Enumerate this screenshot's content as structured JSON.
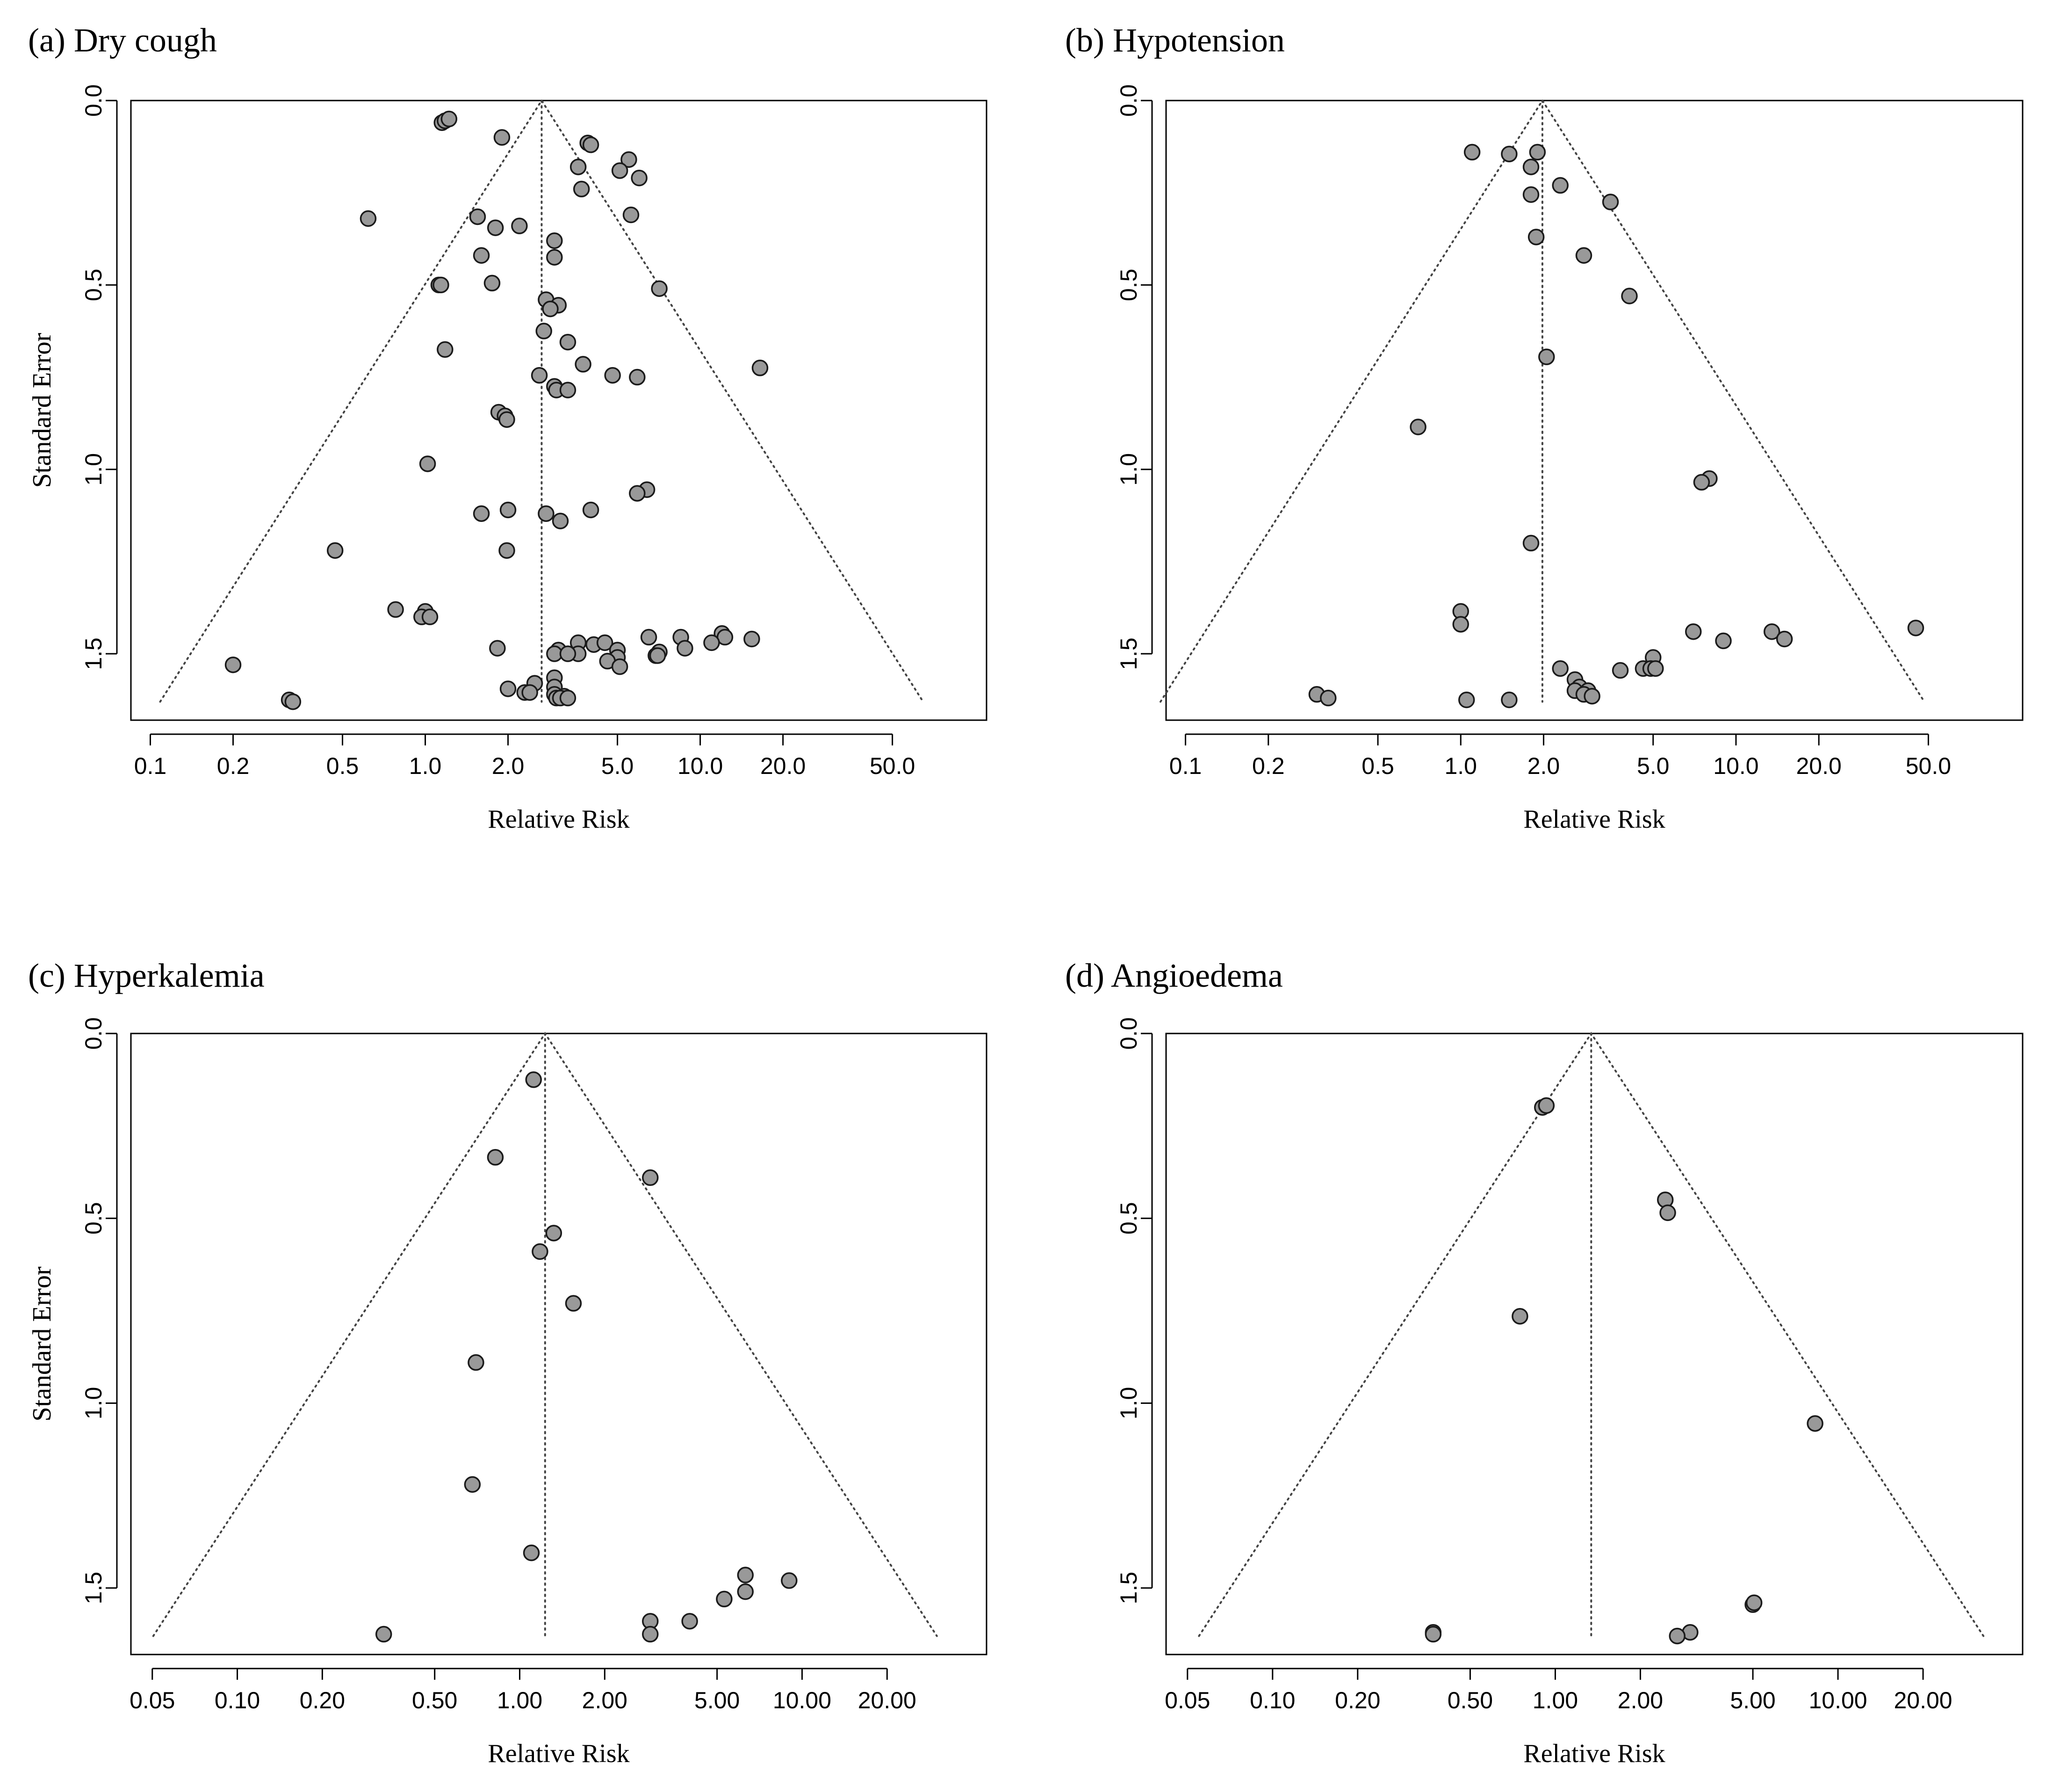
{
  "chart_data": [
    {
      "type": "scatter",
      "title": "(a) Dry cough",
      "xlabel": "Relative Risk",
      "ylabel": "Standard Error",
      "x_scale": "log",
      "xlim": [
        0.085,
        110
      ],
      "ylim": [
        0,
        1.68
      ],
      "x_ticks": [
        0.1,
        0.2,
        0.5,
        1.0,
        2.0,
        5.0,
        10.0,
        20.0,
        50.0
      ],
      "x_tick_labels": [
        "0.1",
        "0.2",
        "0.5",
        "1.0",
        "2.0",
        "5.0",
        "10.0",
        "20.0",
        "50.0"
      ],
      "y_ticks": [
        0.0,
        0.5,
        1.0,
        1.5
      ],
      "y_tick_labels": [
        "0.0",
        "0.5",
        "1.0",
        "1.5"
      ],
      "pooled_estimate": 2.65,
      "funnel_se_max": 1.63,
      "points": [
        {
          "rr": 1.15,
          "se": 0.06
        },
        {
          "rr": 1.18,
          "se": 0.055
        },
        {
          "rr": 1.22,
          "se": 0.05
        },
        {
          "rr": 1.9,
          "se": 0.1
        },
        {
          "rr": 3.9,
          "se": 0.115
        },
        {
          "rr": 4.0,
          "se": 0.12
        },
        {
          "rr": 5.5,
          "se": 0.16
        },
        {
          "rr": 3.6,
          "se": 0.18
        },
        {
          "rr": 5.1,
          "se": 0.19
        },
        {
          "rr": 6.0,
          "se": 0.21
        },
        {
          "rr": 3.7,
          "se": 0.24
        },
        {
          "rr": 0.62,
          "se": 0.32
        },
        {
          "rr": 1.55,
          "se": 0.315
        },
        {
          "rr": 5.6,
          "se": 0.31
        },
        {
          "rr": 1.8,
          "se": 0.345
        },
        {
          "rr": 2.2,
          "se": 0.34
        },
        {
          "rr": 2.95,
          "se": 0.38
        },
        {
          "rr": 1.6,
          "se": 0.42
        },
        {
          "rr": 2.95,
          "se": 0.425
        },
        {
          "rr": 1.75,
          "se": 0.495
        },
        {
          "rr": 1.12,
          "se": 0.5
        },
        {
          "rr": 1.14,
          "se": 0.5
        },
        {
          "rr": 7.1,
          "se": 0.51
        },
        {
          "rr": 2.75,
          "se": 0.54
        },
        {
          "rr": 3.05,
          "se": 0.555
        },
        {
          "rr": 2.85,
          "se": 0.565
        },
        {
          "rr": 2.7,
          "se": 0.625
        },
        {
          "rr": 3.3,
          "se": 0.655
        },
        {
          "rr": 1.18,
          "se": 0.675
        },
        {
          "rr": 3.75,
          "se": 0.715
        },
        {
          "rr": 16.5,
          "se": 0.725
        },
        {
          "rr": 2.6,
          "se": 0.745
        },
        {
          "rr": 4.8,
          "se": 0.745
        },
        {
          "rr": 5.9,
          "se": 0.75
        },
        {
          "rr": 2.95,
          "se": 0.775
        },
        {
          "rr": 3.0,
          "se": 0.785
        },
        {
          "rr": 3.3,
          "se": 0.785
        },
        {
          "rr": 1.85,
          "se": 0.845
        },
        {
          "rr": 1.95,
          "se": 0.855
        },
        {
          "rr": 1.98,
          "se": 0.865
        },
        {
          "rr": 1.02,
          "se": 0.985
        },
        {
          "rr": 6.4,
          "se": 1.055
        },
        {
          "rr": 5.9,
          "se": 1.065
        },
        {
          "rr": 1.6,
          "se": 1.12
        },
        {
          "rr": 2.0,
          "se": 1.11
        },
        {
          "rr": 2.75,
          "se": 1.12
        },
        {
          "rr": 4.0,
          "se": 1.11
        },
        {
          "rr": 3.1,
          "se": 1.14
        },
        {
          "rr": 0.47,
          "se": 1.22
        },
        {
          "rr": 1.98,
          "se": 1.22
        },
        {
          "rr": 0.78,
          "se": 1.38
        },
        {
          "rr": 1.0,
          "se": 1.385
        },
        {
          "rr": 0.97,
          "se": 1.4
        },
        {
          "rr": 1.04,
          "se": 1.4
        },
        {
          "rr": 12.0,
          "se": 1.445
        },
        {
          "rr": 12.3,
          "se": 1.455
        },
        {
          "rr": 15.4,
          "se": 1.46
        },
        {
          "rr": 6.5,
          "se": 1.455
        },
        {
          "rr": 8.5,
          "se": 1.455
        },
        {
          "rr": 11.0,
          "se": 1.47
        },
        {
          "rr": 3.6,
          "se": 1.47
        },
        {
          "rr": 4.1,
          "se": 1.475
        },
        {
          "rr": 4.5,
          "se": 1.47
        },
        {
          "rr": 1.83,
          "se": 1.485
        },
        {
          "rr": 3.6,
          "se": 1.5
        },
        {
          "rr": 3.05,
          "se": 1.49
        },
        {
          "rr": 2.95,
          "se": 1.5
        },
        {
          "rr": 3.3,
          "se": 1.5
        },
        {
          "rr": 5.0,
          "se": 1.49
        },
        {
          "rr": 7.1,
          "se": 1.495
        },
        {
          "rr": 8.8,
          "se": 1.485
        },
        {
          "rr": 5.0,
          "se": 1.51
        },
        {
          "rr": 6.9,
          "se": 1.505
        },
        {
          "rr": 7.0,
          "se": 1.505
        },
        {
          "rr": 4.6,
          "se": 1.52
        },
        {
          "rr": 5.1,
          "se": 1.535
        },
        {
          "rr": 0.2,
          "se": 1.53
        },
        {
          "rr": 2.95,
          "se": 1.565
        },
        {
          "rr": 2.5,
          "se": 1.58
        },
        {
          "rr": 2.95,
          "se": 1.59
        },
        {
          "rr": 2.0,
          "se": 1.595
        },
        {
          "rr": 2.3,
          "se": 1.605
        },
        {
          "rr": 2.4,
          "se": 1.605
        },
        {
          "rr": 2.95,
          "se": 1.61
        },
        {
          "rr": 3.0,
          "se": 1.62
        },
        {
          "rr": 3.2,
          "se": 1.615
        },
        {
          "rr": 3.1,
          "se": 1.62
        },
        {
          "rr": 3.3,
          "se": 1.62
        },
        {
          "rr": 0.32,
          "se": 1.625
        },
        {
          "rr": 0.33,
          "se": 1.63
        }
      ]
    },
    {
      "type": "scatter",
      "title": "(b) Hypotension",
      "xlabel": "Relative Risk",
      "ylabel": "Standard Error",
      "x_scale": "log",
      "xlim": [
        0.085,
        110
      ],
      "ylim": [
        0,
        1.68
      ],
      "x_ticks": [
        0.1,
        0.2,
        0.5,
        1.0,
        2.0,
        5.0,
        10.0,
        20.0,
        50.0
      ],
      "x_tick_labels": [
        "0.1",
        "0.2",
        "0.5",
        "1.0",
        "2.0",
        "5.0",
        "10.0",
        "20.0",
        "50.0"
      ],
      "y_ticks": [
        0.0,
        0.5,
        1.0,
        1.5
      ],
      "y_tick_labels": [
        "0.0",
        "0.5",
        "1.0",
        "1.5"
      ],
      "pooled_estimate": 1.98,
      "funnel_se_max": 1.63,
      "points": [
        {
          "rr": 1.1,
          "se": 0.14
        },
        {
          "rr": 1.5,
          "se": 0.145
        },
        {
          "rr": 1.9,
          "se": 0.14
        },
        {
          "rr": 1.8,
          "se": 0.18
        },
        {
          "rr": 2.3,
          "se": 0.23
        },
        {
          "rr": 1.8,
          "se": 0.255
        },
        {
          "rr": 3.5,
          "se": 0.275
        },
        {
          "rr": 1.88,
          "se": 0.37
        },
        {
          "rr": 2.8,
          "se": 0.42
        },
        {
          "rr": 4.1,
          "se": 0.53
        },
        {
          "rr": 2.05,
          "se": 0.695
        },
        {
          "rr": 0.7,
          "se": 0.885
        },
        {
          "rr": 8.0,
          "se": 1.025
        },
        {
          "rr": 7.5,
          "se": 1.035
        },
        {
          "rr": 1.8,
          "se": 1.2
        },
        {
          "rr": 1.0,
          "se": 1.385
        },
        {
          "rr": 1.0,
          "se": 1.42
        },
        {
          "rr": 45.0,
          "se": 1.43
        },
        {
          "rr": 13.5,
          "se": 1.44
        },
        {
          "rr": 7.0,
          "se": 1.44
        },
        {
          "rr": 15.0,
          "se": 1.46
        },
        {
          "rr": 9.0,
          "se": 1.465
        },
        {
          "rr": 5.0,
          "se": 1.51
        },
        {
          "rr": 4.6,
          "se": 1.54
        },
        {
          "rr": 4.9,
          "se": 1.54
        },
        {
          "rr": 5.1,
          "se": 1.54
        },
        {
          "rr": 3.8,
          "se": 1.545
        },
        {
          "rr": 2.3,
          "se": 1.54
        },
        {
          "rr": 2.6,
          "se": 1.57
        },
        {
          "rr": 2.7,
          "se": 1.59
        },
        {
          "rr": 2.6,
          "se": 1.6
        },
        {
          "rr": 2.9,
          "se": 1.6
        },
        {
          "rr": 2.8,
          "se": 1.61
        },
        {
          "rr": 3.0,
          "se": 1.615
        },
        {
          "rr": 0.3,
          "se": 1.61
        },
        {
          "rr": 0.33,
          "se": 1.62
        },
        {
          "rr": 1.05,
          "se": 1.625
        },
        {
          "rr": 1.5,
          "se": 1.625
        }
      ]
    },
    {
      "type": "scatter",
      "title": "(c) Hyperkalemia",
      "xlabel": "Relative Risk",
      "ylabel": "Standard Error",
      "x_scale": "log",
      "xlim": [
        0.042,
        45
      ],
      "ylim": [
        0,
        1.68
      ],
      "x_ticks": [
        0.05,
        0.1,
        0.2,
        0.5,
        1.0,
        2.0,
        5.0,
        10.0,
        20.0
      ],
      "x_tick_labels": [
        "0.05",
        "0.10",
        "0.20",
        "0.50",
        "1.00",
        "2.00",
        "5.00",
        "10.00",
        "20.00"
      ],
      "y_ticks": [
        0.0,
        0.5,
        1.0,
        1.5
      ],
      "y_tick_labels": [
        "0.0",
        "0.5",
        "1.0",
        "1.5"
      ],
      "pooled_estimate": 1.23,
      "funnel_se_max": 1.63,
      "points": [
        {
          "rr": 1.12,
          "se": 0.125
        },
        {
          "rr": 0.82,
          "se": 0.335
        },
        {
          "rr": 2.9,
          "se": 0.39
        },
        {
          "rr": 1.32,
          "se": 0.54
        },
        {
          "rr": 1.18,
          "se": 0.59
        },
        {
          "rr": 1.55,
          "se": 0.73
        },
        {
          "rr": 0.7,
          "se": 0.89
        },
        {
          "rr": 0.68,
          "se": 1.22
        },
        {
          "rr": 1.1,
          "se": 1.405
        },
        {
          "rr": 6.3,
          "se": 1.465
        },
        {
          "rr": 9.0,
          "se": 1.48
        },
        {
          "rr": 6.3,
          "se": 1.51
        },
        {
          "rr": 5.3,
          "se": 1.53
        },
        {
          "rr": 2.9,
          "se": 1.59
        },
        {
          "rr": 4.0,
          "se": 1.59
        },
        {
          "rr": 2.9,
          "se": 1.625
        },
        {
          "rr": 0.33,
          "se": 1.625
        }
      ]
    },
    {
      "type": "scatter",
      "title": "(d) Angioedema",
      "xlabel": "Relative Risk",
      "ylabel": "Standard Error",
      "x_scale": "log",
      "xlim": [
        0.042,
        45
      ],
      "ylim": [
        0,
        1.68
      ],
      "x_ticks": [
        0.05,
        0.1,
        0.2,
        0.5,
        1.0,
        2.0,
        5.0,
        10.0,
        20.0
      ],
      "x_tick_labels": [
        "0.05",
        "0.10",
        "0.20",
        "0.50",
        "1.00",
        "2.00",
        "5.00",
        "10.00",
        "20.00"
      ],
      "y_ticks": [
        0.0,
        0.5,
        1.0,
        1.5
      ],
      "y_tick_labels": [
        "0.0",
        "0.5",
        "1.0",
        "1.5"
      ],
      "pooled_estimate": 1.34,
      "funnel_se_max": 1.63,
      "points": [
        {
          "rr": 0.9,
          "se": 0.2
        },
        {
          "rr": 0.93,
          "se": 0.195
        },
        {
          "rr": 2.45,
          "se": 0.45
        },
        {
          "rr": 2.5,
          "se": 0.485
        },
        {
          "rr": 0.75,
          "se": 0.765
        },
        {
          "rr": 8.3,
          "se": 1.055
        },
        {
          "rr": 5.0,
          "se": 1.545
        },
        {
          "rr": 5.05,
          "se": 1.54
        },
        {
          "rr": 3.0,
          "se": 1.62
        },
        {
          "rr": 2.7,
          "se": 1.63
        },
        {
          "rr": 0.37,
          "se": 1.62
        },
        {
          "rr": 0.37,
          "se": 1.625
        }
      ]
    }
  ]
}
